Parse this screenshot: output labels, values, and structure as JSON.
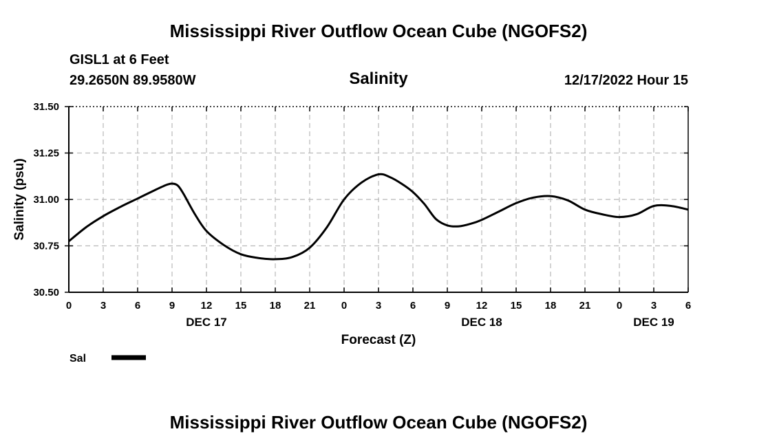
{
  "header": {
    "title": "Mississippi River Outflow Ocean Cube (NGOFS2)",
    "station": "GISL1 at 6 Feet",
    "coords": "29.2650N  89.9580W",
    "datetime": "12/17/2022 Hour 15"
  },
  "chart_data": {
    "type": "line",
    "title": "Salinity",
    "xlabel": "Forecast (Z)",
    "ylabel": "Salinity (psu)",
    "ylim": [
      30.5,
      31.5
    ],
    "yticks": [
      "30.50",
      "30.75",
      "31.00",
      "31.25",
      "31.50"
    ],
    "ytick_values": [
      30.5,
      30.75,
      31.0,
      31.25,
      31.5
    ],
    "xlim": [
      0,
      54
    ],
    "xtick_values": [
      0,
      3,
      6,
      9,
      12,
      15,
      18,
      21,
      24,
      27,
      30,
      33,
      36,
      39,
      42,
      45,
      48,
      51,
      54
    ],
    "xticks": [
      "0",
      "3",
      "6",
      "9",
      "12",
      "15",
      "18",
      "21",
      "0",
      "3",
      "6",
      "9",
      "12",
      "15",
      "18",
      "21",
      "0",
      "3",
      "6"
    ],
    "date_labels": [
      {
        "label": "DEC 17",
        "hour": 12
      },
      {
        "label": "DEC 18",
        "hour": 36
      },
      {
        "label": "DEC 19",
        "hour": 51
      }
    ],
    "grid": true,
    "legend_position": "bottom-left",
    "series": [
      {
        "name": "Sal",
        "color": "#000000",
        "x": [
          0,
          1.5,
          3,
          4.5,
          6,
          7.5,
          8.5,
          9,
          9.5,
          10,
          11,
          12,
          13.5,
          15,
          16.5,
          18,
          19.5,
          21,
          22.5,
          24,
          25.5,
          27,
          28,
          29,
          30,
          31,
          32,
          33,
          34,
          35,
          36,
          37.5,
          39,
          40.5,
          42,
          43.5,
          45,
          46.5,
          48,
          49.5,
          51,
          52.5,
          54
        ],
        "values": [
          30.775,
          30.85,
          30.91,
          30.96,
          31.005,
          31.05,
          31.078,
          31.085,
          31.075,
          31.03,
          30.92,
          30.83,
          30.755,
          30.705,
          30.685,
          30.678,
          30.69,
          30.74,
          30.85,
          31.0,
          31.09,
          31.135,
          31.12,
          31.085,
          31.04,
          30.975,
          30.895,
          30.86,
          30.855,
          30.868,
          30.89,
          30.935,
          30.98,
          31.01,
          31.018,
          30.995,
          30.945,
          30.92,
          30.905,
          30.92,
          30.965,
          30.965,
          30.945
        ]
      }
    ]
  }
}
